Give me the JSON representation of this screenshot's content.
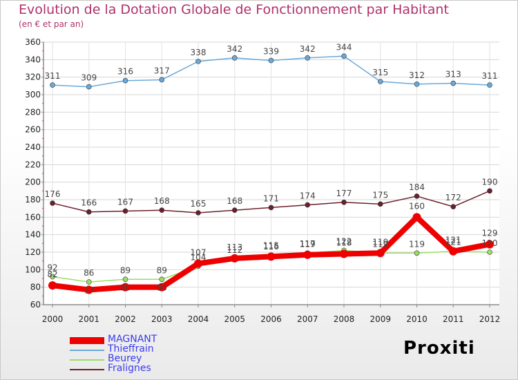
{
  "title": "Evolution de la Dotation Globale de Fonctionnement par Habitant",
  "subtitle": "(en € et par an)",
  "logo": "Proxiti",
  "chart_data": {
    "type": "line",
    "title": "Evolution de la Dotation Globale de Fonctionnement par Habitant",
    "subtitle": "(en € et par an)",
    "categories": [
      "2000",
      "2001",
      "2002",
      "2003",
      "2004",
      "2005",
      "2006",
      "2007",
      "2008",
      "2009",
      "2010",
      "2011",
      "2012"
    ],
    "ylim": [
      60,
      360
    ],
    "yticks": [
      60,
      80,
      100,
      120,
      140,
      160,
      180,
      200,
      220,
      240,
      260,
      280,
      300,
      320,
      340,
      360
    ],
    "grid": true,
    "legend_position": "bottom-left",
    "series": [
      {
        "name": "MAGNANT",
        "color": "#ee0000",
        "values": [
          82,
          77,
          80,
          80,
          107,
          113,
          115,
          117,
          118,
          119,
          160,
          121,
          129
        ]
      },
      {
        "name": "Thieffrain",
        "color": "#6aa8d8",
        "values": [
          311,
          309,
          316,
          317,
          338,
          342,
          339,
          342,
          344,
          315,
          312,
          313,
          311
        ]
      },
      {
        "name": "Beurey",
        "color": "#99dd66",
        "values": [
          92,
          86,
          89,
          89,
          104,
          112,
          116,
          119,
          122,
          119,
          119,
          121,
          120
        ]
      },
      {
        "name": "Fralignes",
        "color": "#6b1f2a",
        "values": [
          176,
          166,
          167,
          168,
          165,
          168,
          171,
          174,
          177,
          175,
          184,
          172,
          190
        ]
      }
    ]
  },
  "legend": [
    {
      "label": "MAGNANT",
      "color": "#ee0000"
    },
    {
      "label": "Thieffrain",
      "color": "#6aa8d8"
    },
    {
      "label": "Beurey",
      "color": "#99dd66"
    },
    {
      "label": "Fralignes",
      "color": "#6b1f2a"
    }
  ]
}
